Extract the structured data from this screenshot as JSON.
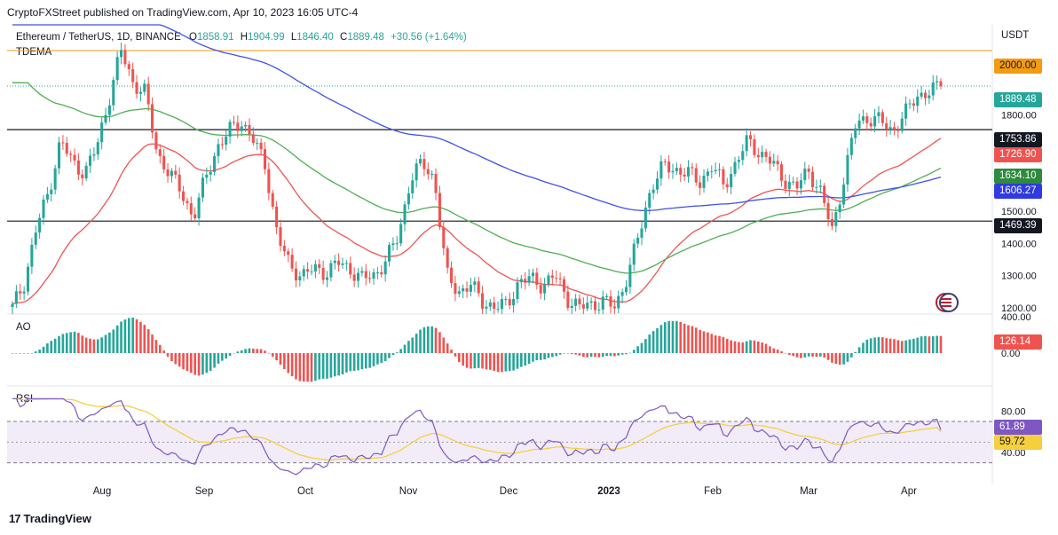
{
  "publisher": "CryptoFXStreet published on TradingView.com, Apr 10, 2023 16:05 UTC-4",
  "legend": {
    "symbol": "Ethereum / TetherUS, 1D, BINANCE",
    "o_label": "O",
    "o": "1858.91",
    "h_label": "H",
    "h": "1904.99",
    "l_label": "L",
    "l": "1846.40",
    "c_label": "C",
    "c": "1889.48",
    "change": "+30.56 (+1.64%)"
  },
  "indicator_title": "TDEMA",
  "currency": "USDT",
  "ao_label": "AO",
  "rsi_label": "RSI",
  "footer": {
    "logo": "17",
    "brand": "TradingView"
  },
  "badges": {
    "level_2000": "2000.00",
    "last_price": "1889.48",
    "level_1753": "1753.86",
    "ema_red": "1726.90",
    "ema_green": "1634.10",
    "ema_blue": "1606.27",
    "level_1469": "1469.39",
    "ao_value": "126.14",
    "rsi_value": "61.89",
    "rsi_ma": "59.72"
  },
  "colors": {
    "up": "#26a69a",
    "down": "#ef5350",
    "ema_red": "#f05350",
    "ema_green": "#4caf50",
    "ema_blue": "#3f51e5",
    "orange": "#f39c12",
    "rsi_line": "#7e57c2",
    "rsi_ma": "#f4d03f"
  },
  "chart_data": {
    "type": "candlestick",
    "price_axis_ticks": [
      "1200.00",
      "1300.00",
      "1400.00",
      "1500.00",
      "1800.00"
    ],
    "price_range": [
      1180,
      2080
    ],
    "horizontal_levels": [
      2000.0,
      1753.86,
      1469.39
    ],
    "months": [
      "Aug",
      "Sep",
      "Oct",
      "Nov",
      "Dec",
      "2023",
      "Feb",
      "Mar",
      "Apr"
    ],
    "closes": [
      1200,
      1280,
      1450,
      1560,
      1720,
      1650,
      1620,
      1700,
      1850,
      2000,
      1900,
      1870,
      1680,
      1620,
      1560,
      1480,
      1600,
      1700,
      1750,
      1780,
      1720,
      1640,
      1420,
      1330,
      1300,
      1320,
      1310,
      1340,
      1320,
      1290,
      1300,
      1350,
      1420,
      1600,
      1650,
      1600,
      1300,
      1250,
      1270,
      1220,
      1200,
      1210,
      1280,
      1290,
      1270,
      1300,
      1230,
      1200,
      1210,
      1220,
      1200,
      1300,
      1430,
      1580,
      1640,
      1630,
      1620,
      1590,
      1640,
      1580,
      1650,
      1720,
      1680,
      1650,
      1600,
      1570,
      1630,
      1560,
      1440,
      1610,
      1780,
      1790,
      1780,
      1750,
      1800,
      1860,
      1870,
      1889.48
    ],
    "ema_red": {
      "name": "",
      "end_value": 1726.9
    },
    "ema_green": {
      "name": "",
      "end_value": 1634.1
    },
    "ema_blue": {
      "name": "",
      "end_value": 1606.27
    },
    "ao": {
      "axis_ticks": [
        "400.00",
        "0.00"
      ],
      "last": 126.14
    },
    "rsi": {
      "axis_ticks": [
        "80.00",
        "40.00"
      ],
      "last": 61.89,
      "ma_last": 59.72,
      "band": [
        70,
        30
      ]
    }
  }
}
